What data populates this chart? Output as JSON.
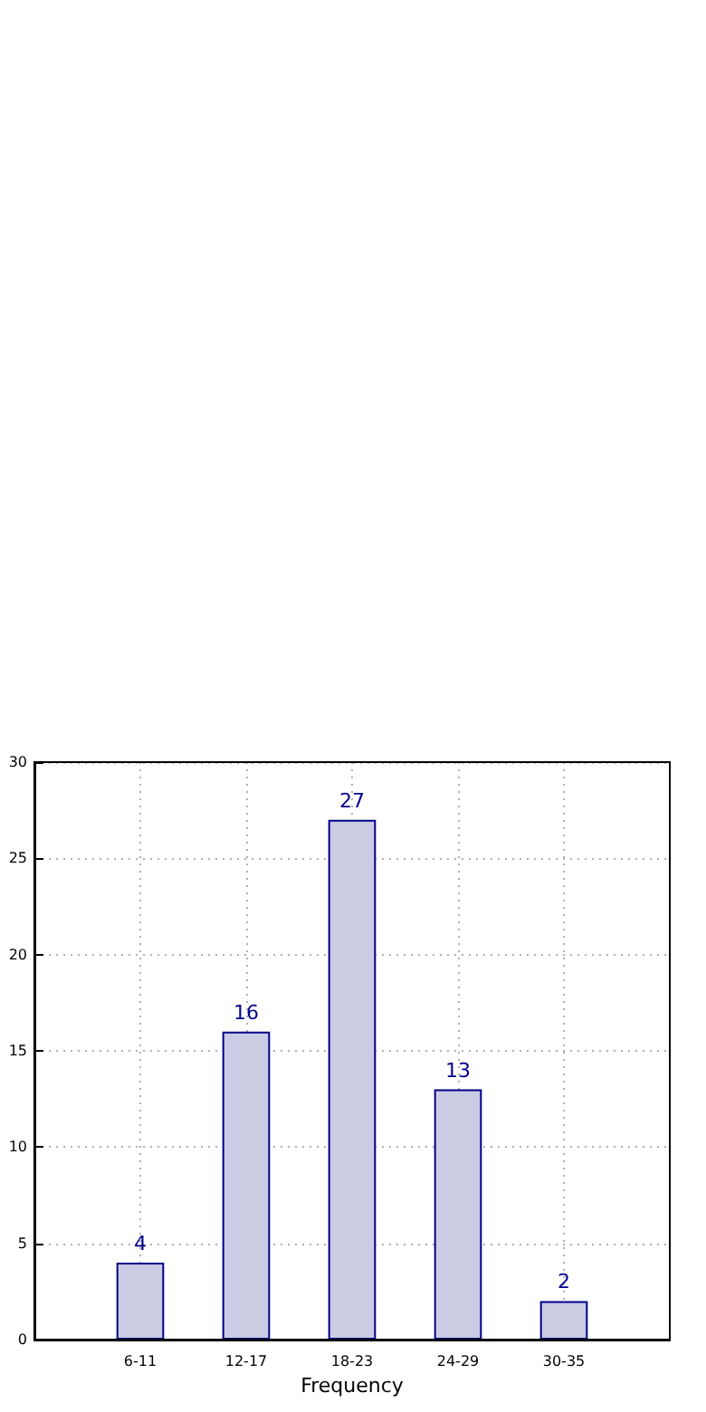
{
  "chart_data": {
    "type": "bar",
    "xlabel": "Frequency",
    "categories": [
      "6-11",
      "12-17",
      "18-23",
      "24-29",
      "30-35"
    ],
    "values": [
      4,
      16,
      27,
      13,
      2
    ],
    "color": "#cbcbe3",
    "data_labels": true,
    "ylim": [
      0,
      30
    ],
    "yticks": [
      0,
      5,
      10,
      15,
      20,
      25,
      30
    ],
    "grid": true
  }
}
